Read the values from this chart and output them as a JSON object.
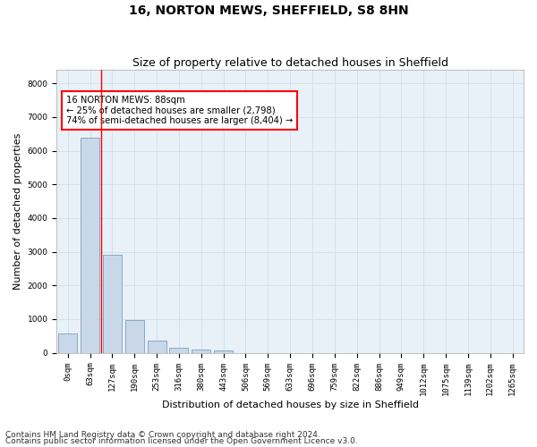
{
  "title": "16, NORTON MEWS, SHEFFIELD, S8 8HN",
  "subtitle": "Size of property relative to detached houses in Sheffield",
  "xlabel": "Distribution of detached houses by size in Sheffield",
  "ylabel": "Number of detached properties",
  "footnote1": "Contains HM Land Registry data © Crown copyright and database right 2024.",
  "footnote2": "Contains public sector information licensed under the Open Government Licence v3.0.",
  "bar_labels": [
    "0sqm",
    "63sqm",
    "127sqm",
    "190sqm",
    "253sqm",
    "316sqm",
    "380sqm",
    "443sqm",
    "506sqm",
    "569sqm",
    "633sqm",
    "696sqm",
    "759sqm",
    "822sqm",
    "886sqm",
    "949sqm",
    "1012sqm",
    "1075sqm",
    "1139sqm",
    "1202sqm",
    "1265sqm"
  ],
  "bar_values": [
    580,
    6380,
    2900,
    960,
    350,
    160,
    100,
    65,
    0,
    0,
    0,
    0,
    0,
    0,
    0,
    0,
    0,
    0,
    0,
    0,
    0
  ],
  "bar_color": "#c8d8e8",
  "bar_edge_color": "#7090b0",
  "property_line_x": 1.5,
  "property_line_color": "red",
  "annotation_text": "16 NORTON MEWS: 88sqm\n← 25% of detached houses are smaller (2,798)\n74% of semi-detached houses are larger (8,404) →",
  "annotation_box_color": "red",
  "ylim": [
    0,
    8400
  ],
  "yticks": [
    0,
    1000,
    2000,
    3000,
    4000,
    5000,
    6000,
    7000,
    8000
  ],
  "grid_color": "#d0e0ec",
  "background_color": "#e8f0f8",
  "title_fontsize": 10,
  "subtitle_fontsize": 9,
  "axis_label_fontsize": 8,
  "tick_fontsize": 6.5,
  "footnote_fontsize": 6.5
}
